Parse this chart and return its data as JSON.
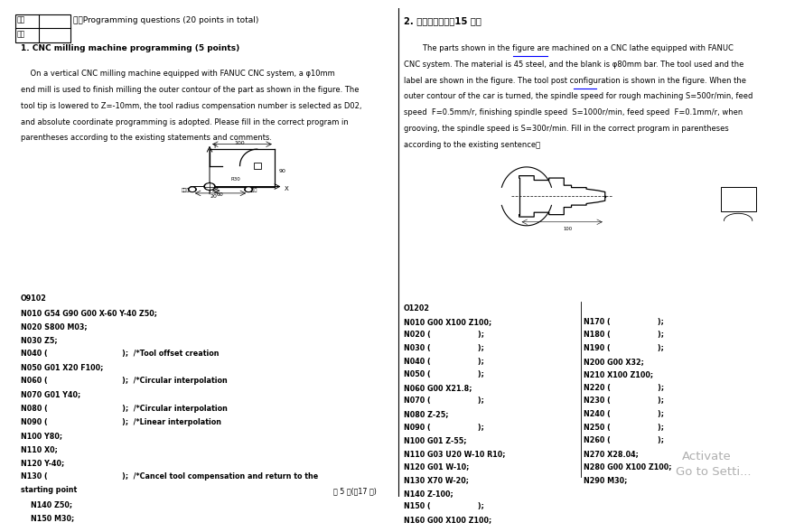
{
  "bg_color": "#ffffff",
  "page_width": 9.07,
  "page_height": 5.66,
  "section1_title": "1. CNC milling machine programming (5 points)",
  "section1_body_lines": [
    "    On a vertical CNC milling machine equipped with FANUC CNC system, a φ10mm",
    "end mill is used to finish milling the outer contour of the part as shown in the figure. The",
    "tool tip is lowered to Z=-10mm, the tool radius compensation number is selected as D02,",
    "and absolute coordinate programming is adopted. Please fill in the correct program in",
    "parentheses according to the existing statements and comments."
  ],
  "section2_title": "2. 数控车床编程（15 分）",
  "section2_body_lines": [
    "        The parts shown in the figure are machined on a CNC lathe equipped with FANUC",
    "CNC system. The material is 45 steel, and the blank is φ80mm bar. The tool used and the",
    "label are shown in the figure. The tool post configuration is shown in the figure. When the",
    "outer contour of the car is turned, the spindle speed for rough machining S=500r/min, feed",
    "speed  F=0.5mm/r, finishing spindle speed  S=1000r/min, feed speed  F=0.1mm/r, when",
    "grooving, the spindle speed is S=300r/min. Fill in the correct program in parentheses",
    "according to the existing sentence。"
  ],
  "left_program": [
    "O9102",
    "N010 G54 G90 G00 X-60 Y-40 Z50;",
    "N020 S800 M03;",
    "N030 Z5;",
    "N040 (                              );  /*Tool offset creation",
    "N050 G01 X20 F100;",
    "N060 (                              );  /*Circular interpolation",
    "N070 G01 Y40;",
    "N080 (                              );  /*Circular interpolation",
    "N090 (                              );  /*Linear interpolation",
    "N100 Y80;",
    "N110 X0;",
    "N120 Y-40;",
    "N130 (                              );  /*Cancel tool compensation and return to the",
    "starting point",
    "    N140 Z50;",
    "    N150 M30;"
  ],
  "right_program_col1": [
    "O1202",
    "N010 G00 X100 Z100;",
    "N020 (                   );",
    "N030 (                   );",
    "N040 (                   );",
    "N050 (                   );",
    "N060 G00 X21.8;",
    "N070 (                   );",
    "N080 Z-25;",
    "N090 (                   );",
    "N100 G01 Z-55;",
    "N110 G03 U20 W-10 R10;",
    "N120 G01 W-10;",
    "N130 X70 W-20;",
    "N140 Z-100;",
    "N150 (                   );",
    "N160 G00 X100 Z100;"
  ],
  "right_program_col2": [
    "N170 (                   );",
    "N180 (                   );",
    "N190 (                   );",
    "N200 G00 X32;",
    "N210 X100 Z100;",
    "N220 (                   );",
    "N230 (                   );",
    "N240 (                   );",
    "N250 (                   );",
    "N260 (                   );",
    "N270 X28.04;",
    "N280 G00 X100 Z100;",
    "N290 M30;"
  ],
  "watermark_line1": "Activate",
  "watermark_line2": "Go to Setti...",
  "footer": "第 5 页(共17 页)"
}
